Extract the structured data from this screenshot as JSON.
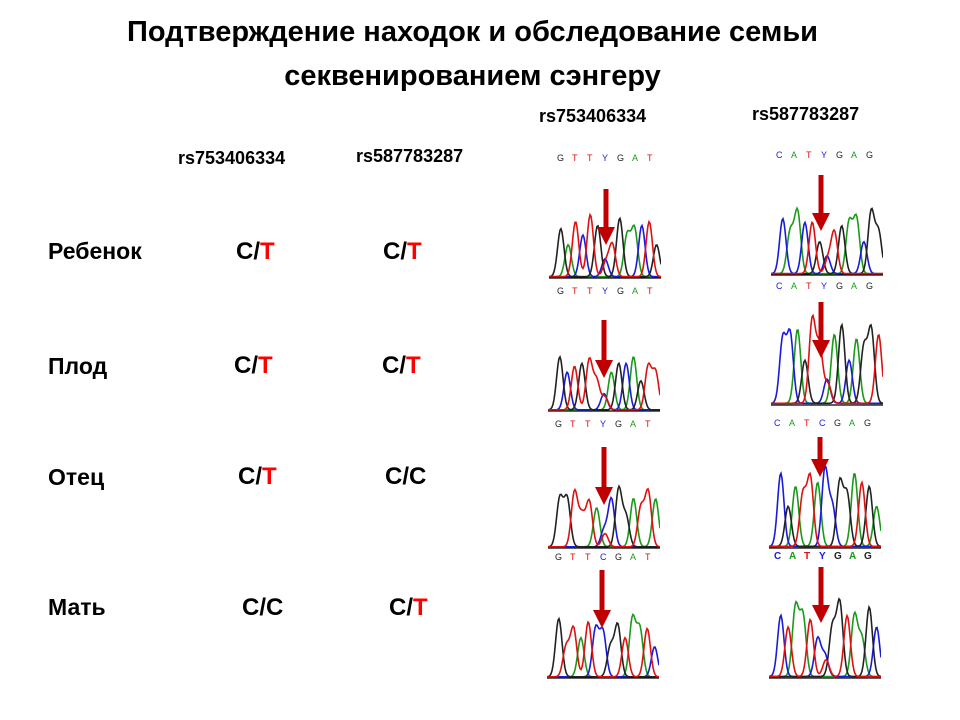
{
  "title_line1": "Подтверждение находок и обследование семьи",
  "title_line2": "секвенированием сэнгеру",
  "columns": {
    "snp1": "rs753406334",
    "snp2": "rs587783287",
    "chrom1": "rs753406334",
    "chrom2": "rs587783287"
  },
  "rows": [
    {
      "label": "Ребенок",
      "g1_a": "C/",
      "g1_b": "T",
      "g2_a": "C/",
      "g2_b": "T"
    },
    {
      "label": "Плод",
      "g1_a": "C/",
      "g1_b": "T",
      "g2_a": "C/",
      "g2_b": "T"
    },
    {
      "label": "Отец",
      "g1_a": "C/",
      "g1_b": "T",
      "g2_a": "C/C",
      "g2_b": ""
    },
    {
      "label": "Мать",
      "g1_a": "C/C",
      "g1_b": "",
      "g2_a": "C/",
      "g2_b": "T"
    }
  ],
  "sequences": {
    "s1_top": [
      "G",
      "T",
      "T",
      "Y",
      "G",
      "A",
      "T"
    ],
    "s1_r1": [
      "G",
      "T",
      "T",
      "Y",
      "G",
      "A",
      "T"
    ],
    "s1_r2": [
      "G",
      "T",
      "T",
      "Y",
      "G",
      "A",
      "T"
    ],
    "s1_r3": [
      "G",
      "T",
      "T",
      "C",
      "G",
      "A",
      "T"
    ],
    "s2_top": [
      "C",
      "A",
      "T",
      "Y",
      "G",
      "A",
      "G"
    ],
    "s2_r1": [
      "C",
      "A",
      "T",
      "Y",
      "G",
      "A",
      "G"
    ],
    "s2_r2": [
      "C",
      "A",
      "T",
      "C",
      "G",
      "A",
      "G"
    ],
    "s2_r3": [
      "C",
      "A",
      "T",
      "Y",
      "G",
      "A",
      "G"
    ]
  },
  "colors": {
    "A": "#1a9a1a",
    "C": "#1a1adb",
    "G": "#222222",
    "T": "#e01010",
    "arrow": "#c00000",
    "highlight": "#ff0000"
  }
}
